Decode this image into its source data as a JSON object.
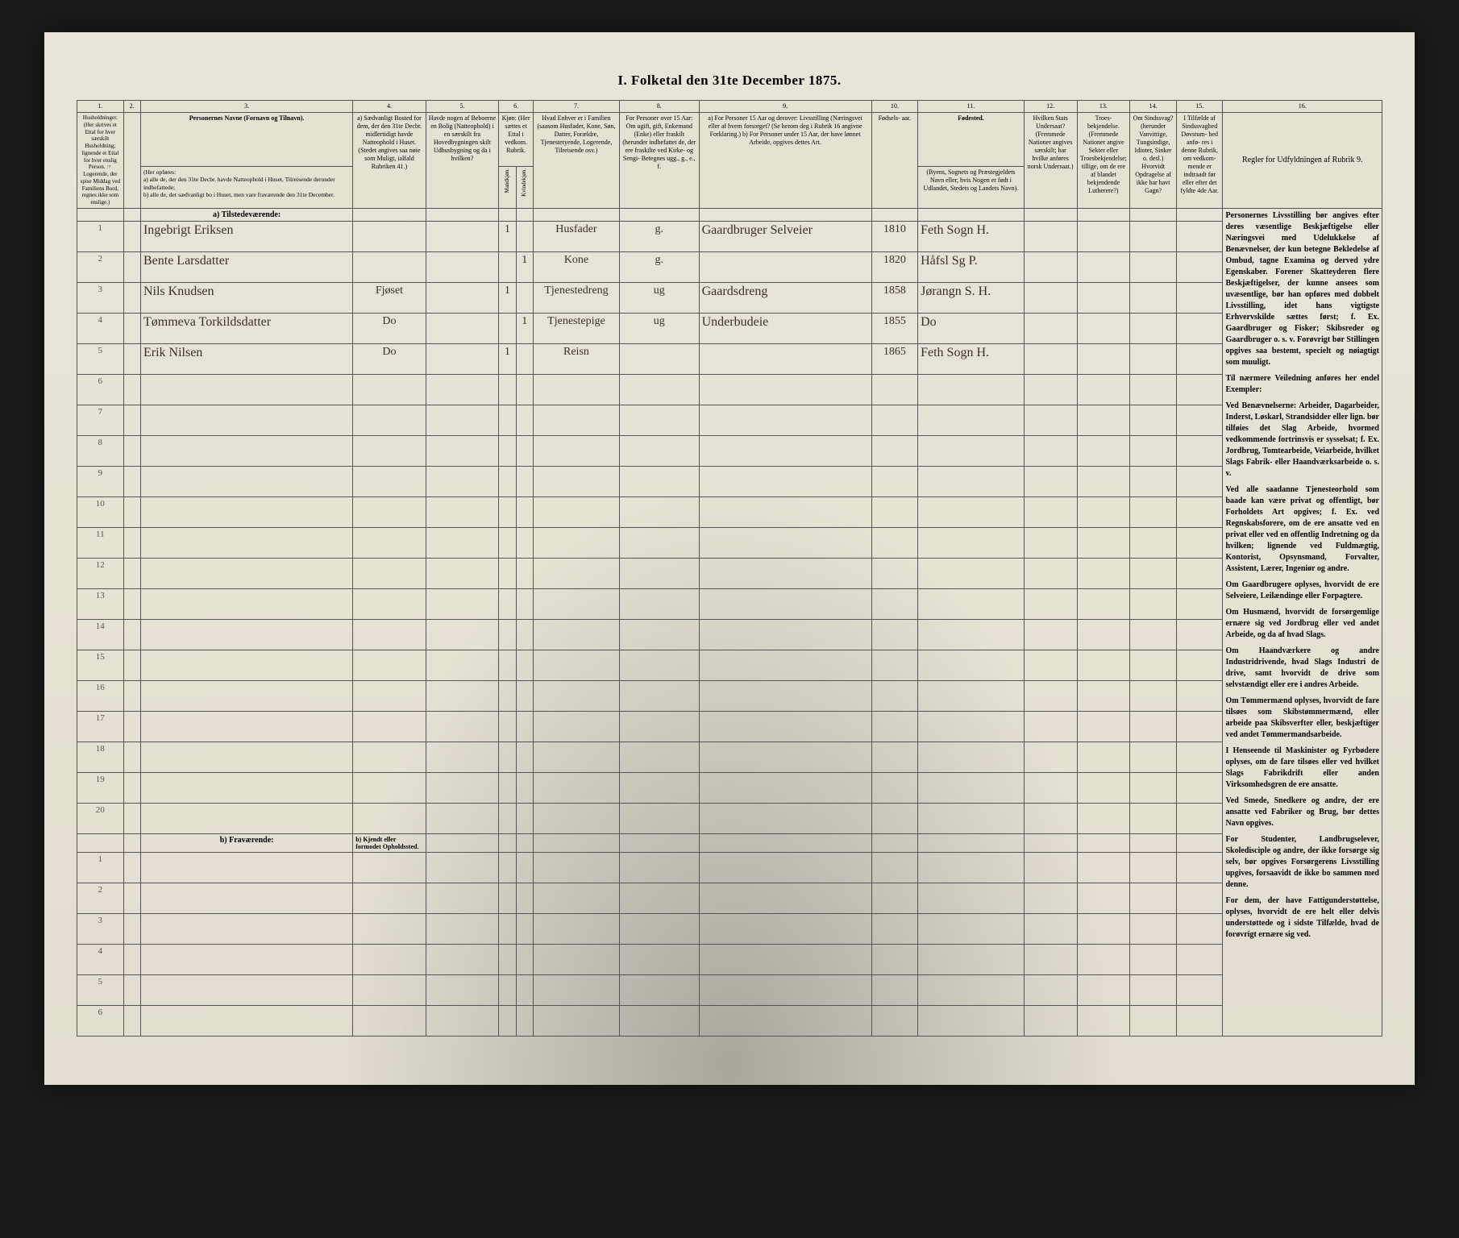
{
  "title": "I.  Folketal  den  31te  December  1875.",
  "columns": {
    "numbers": [
      "1.",
      "2.",
      "3.",
      "4.",
      "5.",
      "6.",
      "7.",
      "8.",
      "9.",
      "10.",
      "11.",
      "12.",
      "13.",
      "14.",
      "15.",
      "16."
    ],
    "h1": "Husholdninger. (Her skrives et Ettal for hver særskilt Husholdning; lignende et Ettal for hver enslig Person. ☞ Logerende, der spise Middag ved Familiens Bord, regnes ikke som enslige.)",
    "h3_title": "Personernes Navne (Fornavn og Tilnavn).",
    "h3_sub": "(Her opføres:\na) alle de, der den 31te Decbr. havde Natteophold i Huset, Tilreisende derunder indbefattede;\nb) alle de, der sædvanligt bo i Huset, men vare fraværende den 31te December.",
    "h4": "a) Sædvanligt Bosted for dem, der den 31te Decbr. midlertidigt havde Natteophold i Huset. (Stedet angives saa nøie som Muligt, ialfald Rubriken 41.)",
    "h5": "Havde nogen af Beboerne en Bolig (Natteophold) i en særskilt fra Hovedbygningen skilt Udhusbygning og da i hvilken?",
    "h6": "Kjøn: (Her sættes et Ettal i vedkom. Rubrik.",
    "h6a": "Mandkjøn.",
    "h6b": "Kvindekjøn.",
    "h7": "Hvad Enhver er i Familien (saasom Husfader, Kone, Søn, Datter, Forældre, Tjenestetyende, Logerende, Tilreisende osv.)",
    "h8": "For Personer over 15 Aar: Om ugift, gift, Enkemand (Enke) eller fraskilt (herunder indbefattet de, der ere fraskilte ved Kirke- og Sengi- Betegnes ugg., g., e., f.",
    "h9": "a) For Personer 15 Aar og derover: Livsstilling (Næringsvei eller af hvem forsorget? (Se herom deg i Rubrik 16 angivne Forklaring.)\nb) For Personer under 15 Aar, der have lønnet Arbeide, opgives dettes Art.",
    "h10": "Fødsels- aar.",
    "h11_title": "Fødested.",
    "h11_sub": "(Byens, Sognets og Præstegjeldets Navn eller, hvis Nogen er født i Udlandet, Stedets og Landets Navn).",
    "h12": "Hvilken Stats Undersaat? (Fremmede Nationer angives særskilt; har hvilke anføres norsk Undersaat.)",
    "h13": "Troes- bekjendelse. (Fremmede Nationer angive Sekter eller Troesbekjendelse; tillige, om de ere af blandet bekjendende Lutherere?)",
    "h14": "Om Sindssvag? (herunder Vanvittige, Tungsindige, Idioter, Sinker o. desl.) Hvorvidt Opdragelse af ikke har havt Gagn?",
    "h15": "I Tilfælde af Sindssvagbed Døvstum- hed anfø- res i denne Rubrik, om vedkom- mende er indtraadt før eller efter det fyldte 4de Aar.",
    "h16_title": "Regler for Udfyldningen af Rubrik 9.",
    "section_a": "a) Tilstedeværende:",
    "section_b": "b) Fraværende:",
    "section_b4": "b) Kjendt eller formodet Opholdssted."
  },
  "entries": [
    {
      "num": "1",
      "name": "Ingebrigt Eriksen",
      "col4": "",
      "col5": "",
      "sex": "m",
      "rel": "Husfader",
      "civ": "g.",
      "occ": "Gaardbruger Selveier",
      "year": "1810",
      "place": "Feth Sogn H."
    },
    {
      "num": "2",
      "name": "Bente Larsdatter",
      "col4": "",
      "col5": "",
      "sex": "f",
      "rel": "Kone",
      "civ": "g.",
      "occ": "",
      "year": "1820",
      "place": "Håfsl Sg P."
    },
    {
      "num": "3",
      "name": "Nils Knudsen",
      "col4": "Fjøset",
      "col5": "",
      "sex": "m",
      "rel": "Tjenestedreng",
      "civ": "ug",
      "occ": "Gaardsdreng",
      "year": "1858",
      "place": "Jørangn S. H."
    },
    {
      "num": "4",
      "name": "Tømmeva Torkildsdatter",
      "col4": "Do",
      "col5": "",
      "sex": "f",
      "rel": "Tjenestepige",
      "civ": "ug",
      "occ": "Underbudeie",
      "year": "1855",
      "place": "Do"
    },
    {
      "num": "5",
      "name": "Erik Nilsen",
      "col4": "Do",
      "col5": "",
      "sex": "m",
      "rel": "Reisn",
      "civ": "",
      "occ": "",
      "year": "1865",
      "place": "Feth Sogn H."
    }
  ],
  "emptyMainRows": [
    "6",
    "7",
    "8",
    "9",
    "10",
    "11",
    "12",
    "13",
    "14",
    "15",
    "16",
    "17",
    "18",
    "19",
    "20"
  ],
  "emptyAbsentRows": [
    "1",
    "2",
    "3",
    "4",
    "5",
    "6"
  ],
  "instructions": {
    "heading": "Regler for Udfyldningen af Rubrik 9.",
    "paras": [
      "Personernes Livsstilling bør angives efter deres væsentlige Beskjæftigelse eller Næringsvei med Udelukkelse af Benævnelser, der kun betegne Bekledelse af Ombud, tagne Examina og derved ydre Egenskaber. Forener Skatteyderen flere Beskjæftigelser, der kunne ansees som uvæsentlige, bør han opføres med dobbelt Livsstilling, idet hans vigtigste Erhvervskilde sættes først; f. Ex. Gaardbruger og Fisker; Skibsreder og Gaardbruger o. s. v. Forøvrigt bør Stillingen opgives saa bestemt, specielt og nøiagtigt som muuligt.",
      "Til nærmere Veiledning anføres her endel Exempler:",
      "Ved Benævnelserne: Arbeider, Dagarbeider, Inderst, Løskarl, Strandsidder eller lign. bør tilføies det Slag Arbeide, hvormed vedkommende fortrinsvis er sysselsat; f. Ex. Jordbrug, Tomtearbeide, Veiarbeide, hvilket Slags Fabrik- eller Haandværksarbeide o. s. v.",
      "Ved alle saadanne Tjenesteorhold som baade kan være privat og offentligt, bør Forholdets Art opgives; f. Ex. ved Regnskabsforere, om de ere ansatte ved en privat eller ved en offentlig Indretning og da hvilken; lignende ved Fuldmægtig, Kontorist, Opsynsmand, Forvalter, Assistent, Lærer, Ingeniør og andre.",
      "Om Gaardbrugere oplyses, hvorvidt de ere Selveiere, Leilændinge eller Forpagtere.",
      "Om Husmænd, hvorvidt de forsørgemlige ernære sig ved Jordbrug eller ved andet Arbeide, og da af hvad Slags.",
      "Om Haandværkere og andre Industridrivende, hvad Slags Industri de drive, samt hvorvidt de drive som selvstændigt eller ere i andres Arbeide.",
      "Om Tømmermænd oplyses, hvorvidt de fare tilsøes som Skibstømmermænd, eller arbeide paa Skibsverfter eller, beskjæftiger ved andet Tømmermandsarbeide.",
      "I Henseende til Maskinister og Fyrbødere oplyses, om de fare tilsøes eller ved hvilket Slags Fabrikdrift eller anden Virksomhedsgren de ere ansatte.",
      "Ved Smede, Snedkere og andre, der ere ansatte ved Fabriker og Brug, bør dettes Navn opgives.",
      "For Studenter, Landbrugselever, Skoledisciple og andre, der ikke forsørge sig selv, bør opgives Forsørgerens Livsstilling upgives, forsaavidt de ikke bo sammen med denne.",
      "For dem, der have Fattigunderstøttelse, oplyses, hvorvidt de ere helt eller delvis understøttede og i sidste Tilfælde, hvad de forøvrigt ernære sig ved."
    ]
  }
}
